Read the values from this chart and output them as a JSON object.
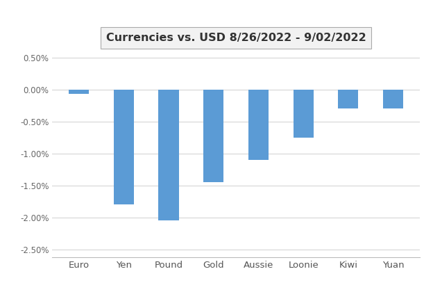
{
  "title": "Currencies vs. USD 8/26/2022 - 9/02/2022",
  "categories": [
    "Euro",
    "Yen",
    "Pound",
    "Gold",
    "Aussie",
    "Loonie",
    "Kiwi",
    "Yuan"
  ],
  "values": [
    -0.0007,
    -0.018,
    -0.0205,
    -0.0145,
    -0.011,
    -0.0075,
    -0.003,
    -0.003
  ],
  "bar_color": "#5b9bd5",
  "ylim": [
    -0.0262,
    0.0058
  ],
  "yticks": [
    0.005,
    0.0,
    -0.005,
    -0.01,
    -0.015,
    -0.02,
    -0.025
  ],
  "ytick_labels": [
    "0.50%",
    "0.00%",
    "-0.50%",
    "-1.00%",
    "-1.50%",
    "-2.00%",
    "-2.50%"
  ],
  "background_color": "#ffffff",
  "grid_color": "#d0d0d0",
  "title_fontsize": 11.5,
  "tick_fontsize": 8.5,
  "xtick_fontsize": 9.5,
  "title_box_facecolor": "#f2f2f2",
  "title_box_edgecolor": "#aaaaaa",
  "title_text_color": "#333333"
}
